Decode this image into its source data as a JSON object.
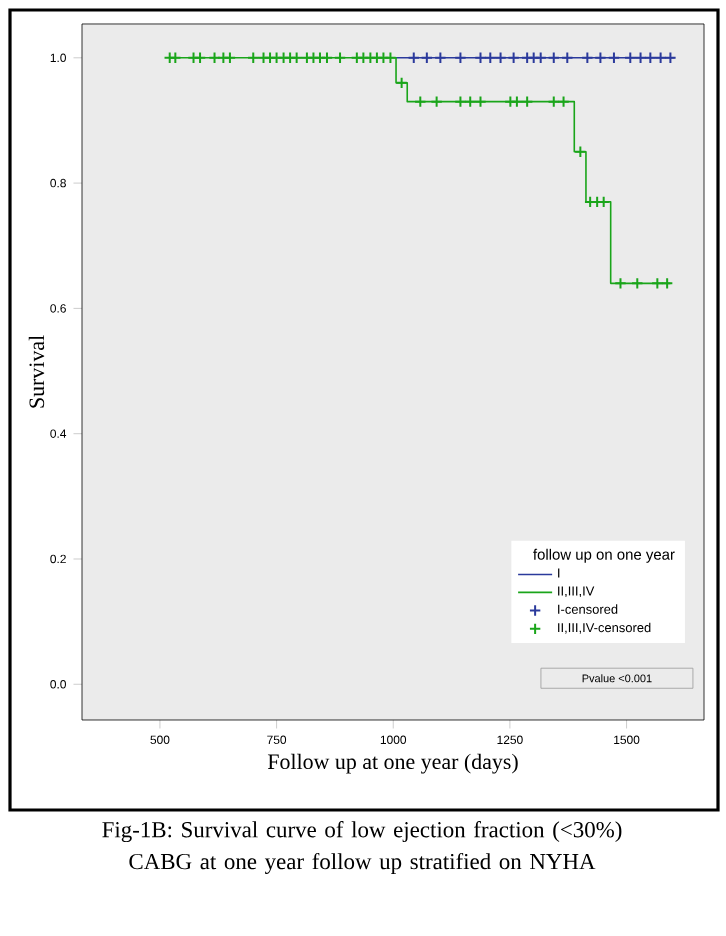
{
  "chart_data": {
    "type": "step",
    "xlabel": "Follow up at one year (days)",
    "ylabel": "Survival",
    "legend_title": "follow up on one year",
    "xlim": [
      333,
      1666
    ],
    "ylim": [
      -0.057,
      1.054
    ],
    "xticks": [
      500,
      750,
      1000,
      1250,
      1500
    ],
    "yticks": [
      {
        "value": 0,
        "label": "0.0"
      },
      {
        "value": 0.2,
        "label": "0.2"
      },
      {
        "value": 0.4,
        "label": "0.4"
      },
      {
        "value": 0.6,
        "label": "0.6"
      },
      {
        "value": 0.8,
        "label": "0.8"
      },
      {
        "value": 1,
        "label": "1.0"
      }
    ],
    "legend": "bottom right",
    "series": [
      {
        "name": "I",
        "color": "#2b3a9c",
        "x": [
          1006,
          1603
        ],
        "values": [
          1,
          1
        ]
      },
      {
        "name": "II,III,IV",
        "color": "#1aa51a",
        "x": [
          521,
          1006,
          1030,
          1388,
          1413,
          1466,
          1594
        ],
        "values": [
          1,
          0.96,
          0.93,
          0.85,
          0.77,
          0.64,
          0.64
        ]
      },
      {
        "name": "I-censored",
        "type": "scatter",
        "marker": "cross",
        "color": "#2b3a9c",
        "x": [
          1044,
          1072,
          1101,
          1144,
          1187,
          1208,
          1230,
          1258,
          1287,
          1301,
          1316,
          1344,
          1373,
          1416,
          1444,
          1473,
          1508,
          1530,
          1551,
          1573,
          1594
        ],
        "values": [
          1,
          1,
          1,
          1,
          1,
          1,
          1,
          1,
          1,
          1,
          1,
          1,
          1,
          1,
          1,
          1,
          1,
          1,
          1,
          1,
          1
        ]
      },
      {
        "name": "II,III,IV-censored",
        "type": "scatter",
        "marker": "cross",
        "color": "#1aa51a",
        "x": [
          521,
          533,
          572,
          586,
          617,
          636,
          650,
          700,
          722,
          736,
          750,
          765,
          779,
          793,
          815,
          829,
          843,
          858,
          886,
          922,
          936,
          951,
          965,
          979,
          994,
          1018,
          1058,
          1093,
          1144,
          1165,
          1187,
          1251,
          1265,
          1287,
          1344,
          1365,
          1401,
          1422,
          1437,
          1451,
          1487,
          1523,
          1566,
          1587
        ],
        "values": [
          1,
          1,
          1,
          1,
          1,
          1,
          1,
          1,
          1,
          1,
          1,
          1,
          1,
          1,
          1,
          1,
          1,
          1,
          1,
          1,
          1,
          1,
          1,
          1,
          1,
          0.96,
          0.93,
          0.93,
          0.93,
          0.93,
          0.93,
          0.93,
          0.93,
          0.93,
          0.93,
          0.93,
          0.85,
          0.77,
          0.77,
          0.77,
          0.64,
          0.64,
          0.64,
          0.64
        ]
      }
    ],
    "annotations": [
      "Pvalue <0.001",
      "Fig-1B:  Survival curve of low ejection fraction (<30%) CABG at one year follow up stratified on NYHA"
    ]
  }
}
